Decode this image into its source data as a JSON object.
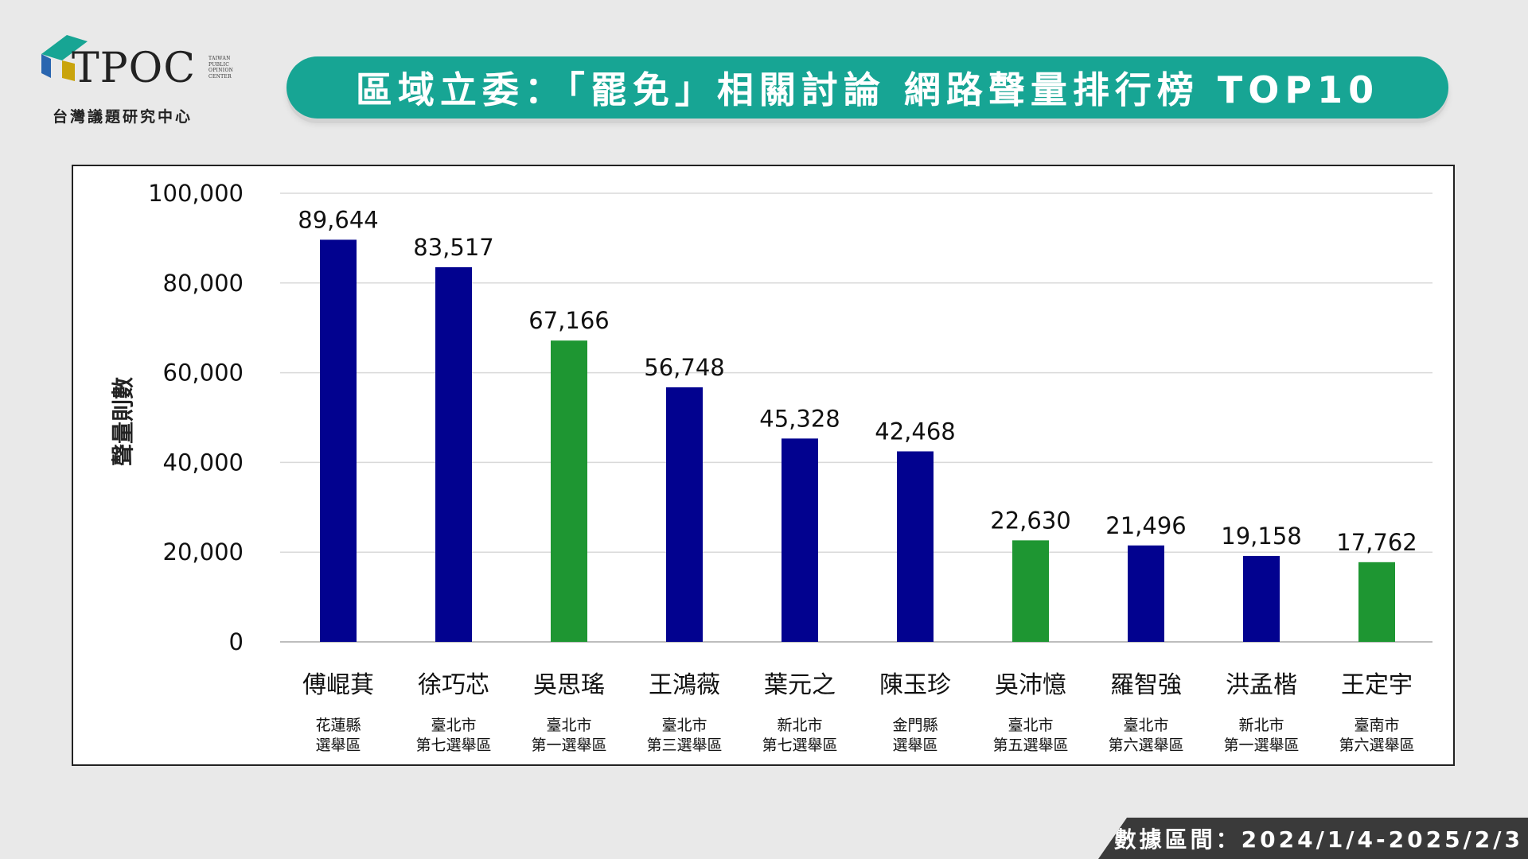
{
  "logo": {
    "name": "TPOC",
    "side_text": [
      "TAIWAN",
      "PUBLIC",
      "OPINION",
      "CENTER"
    ],
    "subtitle": "台灣議題研究中心"
  },
  "title": "區域立委：「罷免」相關討論 網路聲量排行榜 TOP10",
  "footer": "數據區間：2024/1/4-2025/2/3",
  "colors": {
    "teal": "#17a594",
    "blue": "#02028f",
    "green": "#1e9632"
  },
  "chart_data": {
    "type": "bar",
    "ylabel": "聲量則數",
    "ylim": [
      0,
      100000
    ],
    "yticks": [
      "0",
      "20,000",
      "40,000",
      "60,000",
      "80,000",
      "100,000"
    ],
    "categories": [
      {
        "name": "傅崐萁",
        "district": [
          "花蓮縣",
          "選舉區"
        ],
        "value": 89644,
        "label": "89,644",
        "color": "blue"
      },
      {
        "name": "徐巧芯",
        "district": [
          "臺北市",
          "第七選舉區"
        ],
        "value": 83517,
        "label": "83,517",
        "color": "blue"
      },
      {
        "name": "吳思瑤",
        "district": [
          "臺北市",
          "第一選舉區"
        ],
        "value": 67166,
        "label": "67,166",
        "color": "green"
      },
      {
        "name": "王鴻薇",
        "district": [
          "臺北市",
          "第三選舉區"
        ],
        "value": 56748,
        "label": "56,748",
        "color": "blue"
      },
      {
        "name": "葉元之",
        "district": [
          "新北市",
          "第七選舉區"
        ],
        "value": 45328,
        "label": "45,328",
        "color": "blue"
      },
      {
        "name": "陳玉珍",
        "district": [
          "金門縣",
          "選舉區"
        ],
        "value": 42468,
        "label": "42,468",
        "color": "blue"
      },
      {
        "name": "吳沛憶",
        "district": [
          "臺北市",
          "第五選舉區"
        ],
        "value": 22630,
        "label": "22,630",
        "color": "green"
      },
      {
        "name": "羅智強",
        "district": [
          "臺北市",
          "第六選舉區"
        ],
        "value": 21496,
        "label": "21,496",
        "color": "blue"
      },
      {
        "name": "洪孟楷",
        "district": [
          "新北市",
          "第一選舉區"
        ],
        "value": 19158,
        "label": "19,158",
        "color": "blue"
      },
      {
        "name": "王定宇",
        "district": [
          "臺南市",
          "第六選舉區"
        ],
        "value": 17762,
        "label": "17,762",
        "color": "green"
      }
    ],
    "grid": true,
    "legend": "none"
  }
}
